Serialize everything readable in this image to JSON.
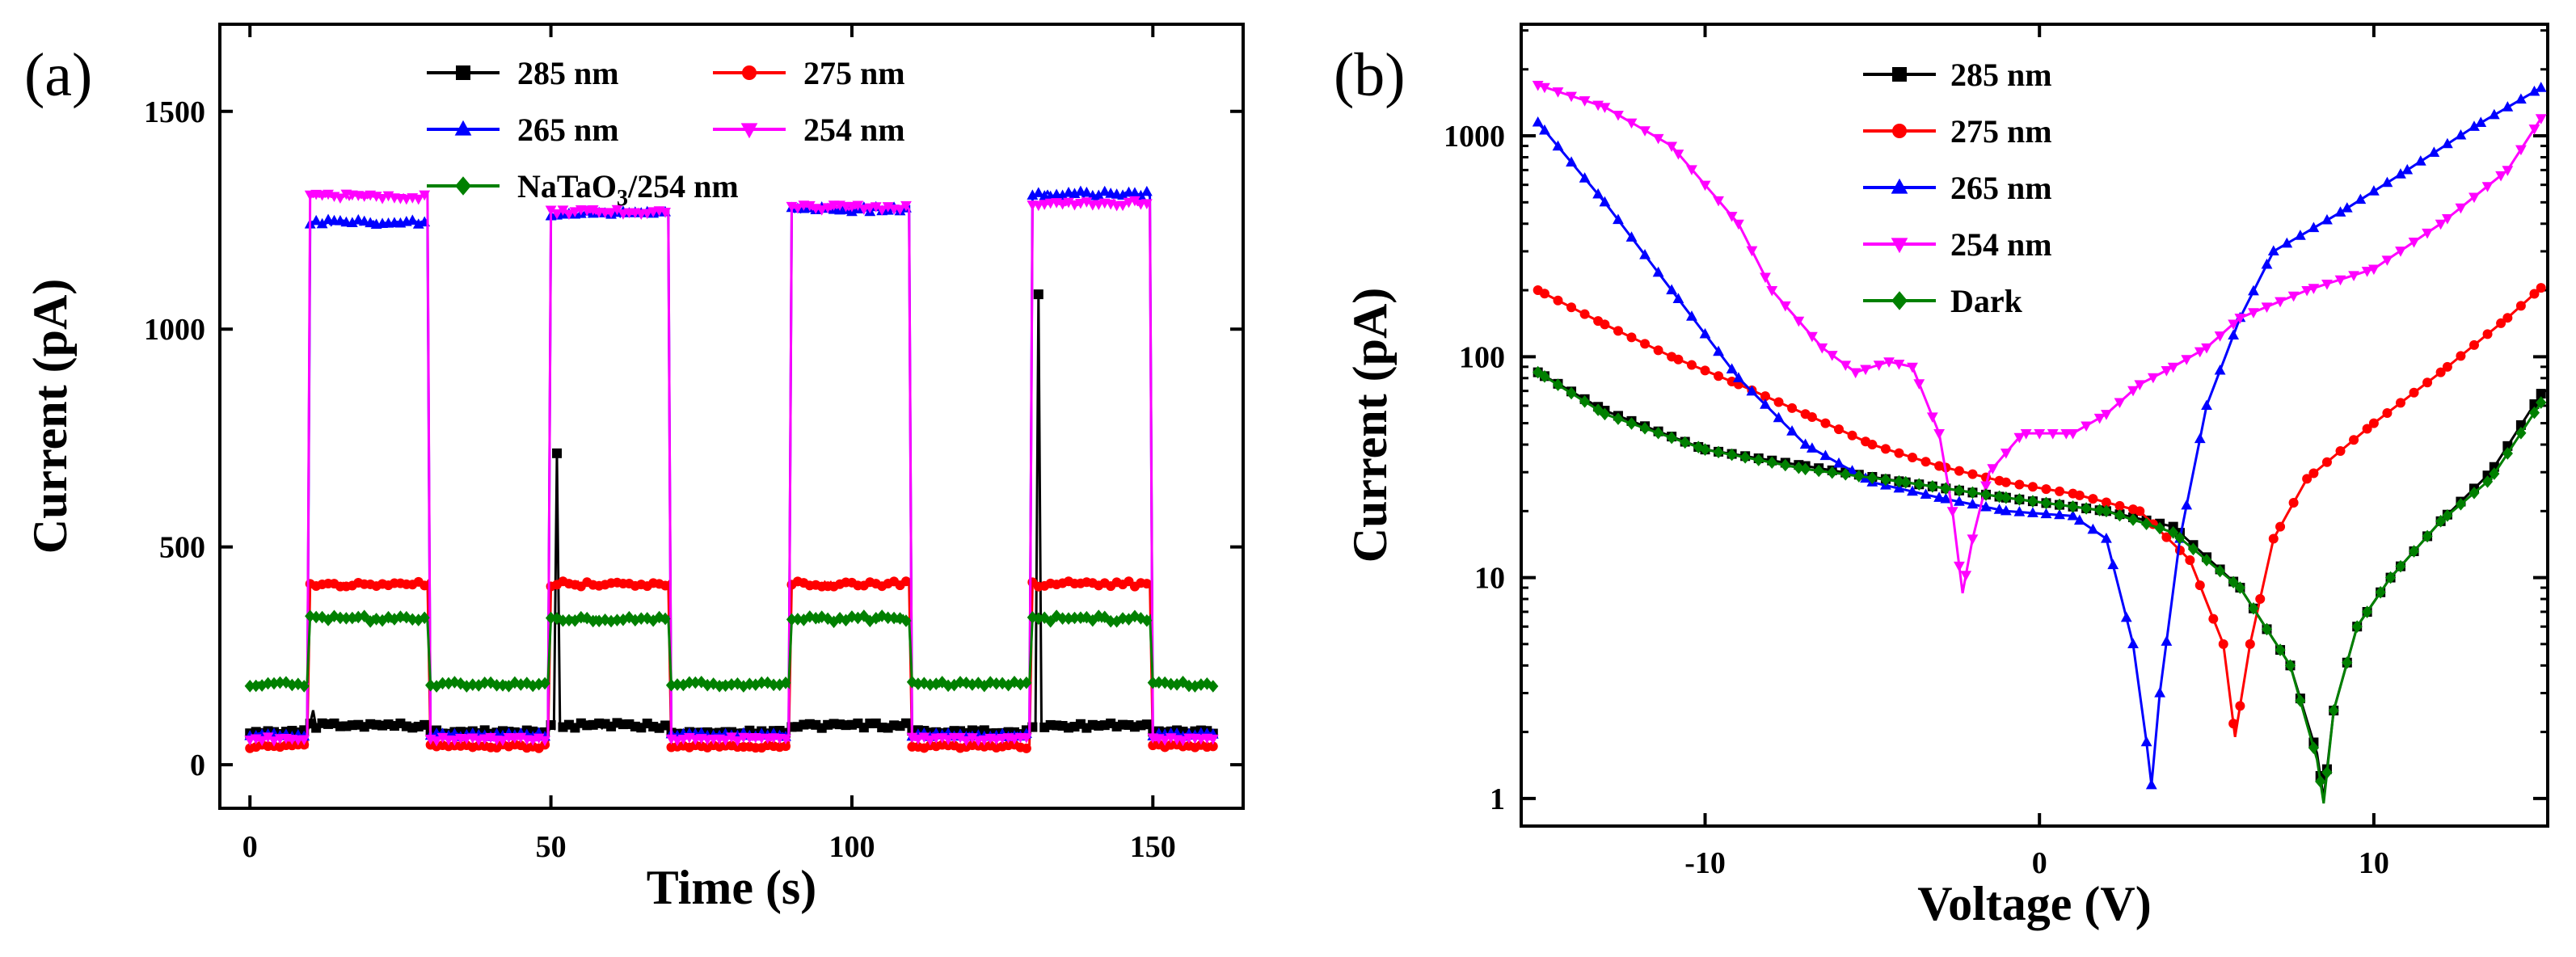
{
  "chart_data": [
    {
      "panel_label": "(a)",
      "type": "line",
      "xlabel": "Time (s)",
      "ylabel": "Current (pA)",
      "xlim": [
        -5,
        165
      ],
      "ylim": [
        -100,
        1700
      ],
      "xticks": [
        0,
        50,
        100,
        150
      ],
      "yticks": [
        0,
        500,
        1000,
        1500
      ],
      "legend_position": "top-center",
      "on_intervals": [
        [
          10,
          30
        ],
        [
          50,
          70
        ],
        [
          90,
          110
        ],
        [
          130,
          150
        ]
      ],
      "series": [
        {
          "name": "285 nm",
          "color": "#000000",
          "marker": "square",
          "off_level": 75,
          "on_level": 90,
          "spikes": [
            {
              "x": 51,
              "y": 715
            },
            {
              "x": 131,
              "y": 1080
            },
            {
              "x": 10.5,
              "y": 125
            }
          ]
        },
        {
          "name": "275 nm",
          "color": "#ff0000",
          "marker": "circle",
          "off_level": 42,
          "on_level": 415
        },
        {
          "name": "265 nm",
          "color": "#0000ff",
          "marker": "triangle-up",
          "off_level": 68,
          "on_levels": [
            1245,
            1265,
            1275,
            1310
          ]
        },
        {
          "name": "254 nm",
          "color": "#ff00ff",
          "marker": "triangle-down",
          "off_level": 60,
          "on_levels": [
            1305,
            1270,
            1280,
            1290
          ]
        },
        {
          "name_prefix": "NaTaO",
          "name_sub": "3",
          "name_suffix": "/254 nm",
          "color": "#008000",
          "marker": "diamond",
          "off_level": 185,
          "on_level": 335
        }
      ]
    },
    {
      "panel_label": "(b)",
      "type": "line",
      "yscale": "log",
      "xlabel": "Voltage (V)",
      "ylabel": "Current (pA)",
      "xlim": [
        -15.5,
        15.2
      ],
      "ylim": [
        0.75,
        3200
      ],
      "xticks": [
        -10,
        0,
        10
      ],
      "xtick_labels": [
        "-10",
        "0",
        "10"
      ],
      "yticks": [
        1,
        10,
        100,
        1000
      ],
      "ytick_labels": [
        "1",
        "10",
        "100",
        "1000"
      ],
      "legend_position": "top-center",
      "series": [
        {
          "name": "285 nm",
          "color": "#000000",
          "marker": "square",
          "points": [
            [
              -15,
              85
            ],
            [
              -13,
              57
            ],
            [
              -10,
              38
            ],
            [
              -7,
              32
            ],
            [
              -4,
              27
            ],
            [
              -1,
              23
            ],
            [
              2,
              20
            ],
            [
              4,
              17
            ],
            [
              6,
              9
            ],
            [
              7.5,
              4
            ],
            [
              8.3,
              1.6
            ],
            [
              8.5,
              1.0
            ],
            [
              8.8,
              2.5
            ],
            [
              9.5,
              6
            ],
            [
              10.5,
              10
            ],
            [
              12,
              18
            ],
            [
              13.5,
              30
            ],
            [
              15,
              68
            ]
          ]
        },
        {
          "name": "275 nm",
          "color": "#ff0000",
          "marker": "circle",
          "points": [
            [
              -15,
              200
            ],
            [
              -13,
              140
            ],
            [
              -11,
              100
            ],
            [
              -9,
              75
            ],
            [
              -7,
              55
            ],
            [
              -5,
              40
            ],
            [
              -3,
              32
            ],
            [
              -1,
              27
            ],
            [
              1,
              24
            ],
            [
              3,
              20
            ],
            [
              4.5,
              12
            ],
            [
              5.5,
              5
            ],
            [
              5.85,
              1.9
            ],
            [
              6.3,
              5
            ],
            [
              7,
              15
            ],
            [
              8,
              28
            ],
            [
              10,
              50
            ],
            [
              12,
              85
            ],
            [
              14,
              150
            ],
            [
              15,
              205
            ]
          ]
        },
        {
          "name": "265 nm",
          "color": "#0000ff",
          "marker": "triangle-up",
          "points": [
            [
              -15,
              1150
            ],
            [
              -13,
              500
            ],
            [
              -11,
              200
            ],
            [
              -9,
              80
            ],
            [
              -7,
              40
            ],
            [
              -5,
              27
            ],
            [
              -3,
              23
            ],
            [
              -1,
              20
            ],
            [
              1,
              19
            ],
            [
              2,
              15
            ],
            [
              2.8,
              5
            ],
            [
              3.2,
              1.8
            ],
            [
              3.35,
              1.15
            ],
            [
              3.6,
              3
            ],
            [
              4.2,
              15
            ],
            [
              5,
              60
            ],
            [
              6,
              150
            ],
            [
              7,
              300
            ],
            [
              9,
              450
            ],
            [
              11,
              700
            ],
            [
              13,
              1100
            ],
            [
              15,
              1650
            ]
          ]
        },
        {
          "name": "254 nm",
          "color": "#ff00ff",
          "marker": "triangle-down",
          "points": [
            [
              -15,
              1700
            ],
            [
              -13,
              1350
            ],
            [
              -11,
              900
            ],
            [
              -9,
              400
            ],
            [
              -8,
              200
            ],
            [
              -6.5,
              110
            ],
            [
              -5.5,
              85
            ],
            [
              -4.5,
              95
            ],
            [
              -3.8,
              90
            ],
            [
              -3,
              45
            ],
            [
              -2.6,
              20
            ],
            [
              -2.3,
              8.5
            ],
            [
              -2,
              15
            ],
            [
              -1.5,
              30
            ],
            [
              -0.5,
              45
            ],
            [
              1,
              45
            ],
            [
              2,
              55
            ],
            [
              3,
              75
            ],
            [
              4,
              90
            ],
            [
              5,
              110
            ],
            [
              6,
              150
            ],
            [
              8,
              200
            ],
            [
              10,
              250
            ],
            [
              12,
              400
            ],
            [
              14,
              700
            ],
            [
              15,
              1200
            ]
          ]
        },
        {
          "name": "Dark",
          "color": "#008000",
          "marker": "diamond",
          "points": [
            [
              -15,
              85
            ],
            [
              -13,
              55
            ],
            [
              -10,
              38
            ],
            [
              -7,
              31
            ],
            [
              -4,
              27
            ],
            [
              -1,
              23
            ],
            [
              2,
              20
            ],
            [
              4,
              16
            ],
            [
              6,
              9
            ],
            [
              7.5,
              4
            ],
            [
              8.3,
              1.5
            ],
            [
              8.5,
              0.95
            ],
            [
              8.8,
              2.5
            ],
            [
              9.5,
              6
            ],
            [
              10.5,
              10
            ],
            [
              12,
              18
            ],
            [
              13.5,
              28
            ],
            [
              15,
              62
            ]
          ]
        }
      ]
    }
  ]
}
